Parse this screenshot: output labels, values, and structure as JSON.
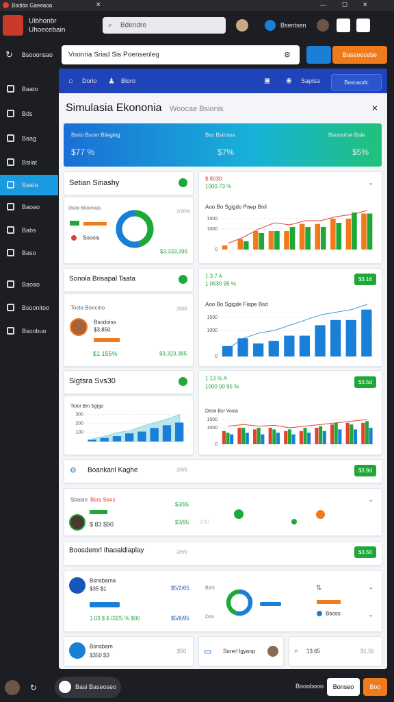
{
  "app": {
    "window_title": "Bsdiás Gaeeaoa",
    "brand": [
      "Uibhonbr",
      "Uhoecebain"
    ],
    "search": "Bdendre",
    "user": "Bsentsen"
  },
  "sidebar": {
    "top": "Bsooonsao",
    "items": [
      "Baato",
      "Bds",
      "Baag",
      "Bsiiat",
      "Baata",
      "Baoao",
      "Babs",
      "Baso",
      "Baoao",
      "Bsoonitoo",
      "Bsoobuo"
    ]
  },
  "toolbar": {
    "search": "Vnonria Sriad  Sis   Poensenleg",
    "button": "Baseoecebe"
  },
  "nav": {
    "items": [
      "Dorio",
      "Bioro"
    ],
    "right": "Sapisa",
    "button": "Bosnaodc"
  },
  "modal": {
    "title": "Simulasia Ekononia",
    "subtitle": "Woocae Bsionis"
  },
  "banner": [
    {
      "label": "Bsrio Bsom Bileglag",
      "value": "$77 %"
    },
    {
      "label": "Bsc Bsinsos",
      "value": "$7%"
    },
    {
      "label": "Bsonairtel Baie",
      "value": "$5%"
    }
  ],
  "row1": {
    "title": "Setian Sinashy",
    "sub": "Dsoo Bioonoas",
    "note": "2/20%",
    "legend": "Sooois",
    "total": "$3,333,396",
    "stat": "$ 8030",
    "change": "1000.73 %"
  },
  "row2": {
    "title": "Sonola Brisapal Taata",
    "head": "Toola  Boocino",
    "note": "2800",
    "name": "Bsodoiss",
    "amount": "$3,850",
    "pct": "$1 155%",
    "total": "$3,323,395",
    "stat": "1.3.7 A",
    "change": "1 0530 95 %",
    "button": "$3.16"
  },
  "row3": {
    "title": "Sigtsra Svs30",
    "stat": "1 13 % A",
    "change": "1000 00 95 %",
    "button": "$3.5d"
  },
  "row4": {
    "title": "Boankanl Kaghe",
    "note": "2/9/0",
    "button": "$3.9d"
  },
  "row5": {
    "head": "Sbaian",
    "tag": "Bsrs Sees",
    "amount": "$ 83 $90",
    "v1": "$3/95",
    "v2": "$3/95",
    "v3": "2/30"
  },
  "row6": {
    "title": "Boosdemrl Ihaoaldlaplay",
    "note": "2/5/0",
    "button": "$3.50"
  },
  "row7": {
    "name": "Bsnsbarna",
    "amount": "$35 $1",
    "v1": "$5/2/65",
    "pct": "1.03 $ $ 0325 % $00",
    "v2": "$5/8/95",
    "l1": "Bsrk",
    "l2": "Doo",
    "r1": "Bsoss"
  },
  "row8": {
    "name": "Bsnsbarn",
    "amount": "$350 $3",
    "v": "$50",
    "mid": "Sarerl lgyanp",
    "s": "13.65",
    "r": "$1,50"
  },
  "footer": {
    "pill": "Basi Baseoseo",
    "label": "Booobooo",
    "b1": "Bonseo",
    "b2": "Boo"
  },
  "chart_data": [
    {
      "type": "pie",
      "values": [
        45,
        55
      ],
      "colors": [
        "#1fa83a",
        "#1a7fd6"
      ]
    },
    {
      "type": "bar",
      "title": "Aoo Bo Sgigdo Paep Bnil",
      "ylim": [
        0,
        2200
      ],
      "yticks": [
        0,
        1000,
        1500
      ],
      "series": [
        {
          "color": "#f07b1c",
          "values": [
            200,
            500,
            900,
            900,
            900,
            1250,
            1250,
            1500,
            1500,
            1750
          ]
        },
        {
          "color": "#1fa83a",
          "values": [
            0,
            400,
            800,
            900,
            1100,
            1100,
            1100,
            1300,
            1800,
            1750
          ]
        },
        {
          "color": "#e2412c",
          "kind": "line",
          "values": [
            300,
            600,
            1000,
            1300,
            1200,
            1400,
            1400,
            1600,
            1700,
            1900
          ]
        }
      ]
    },
    {
      "type": "bar",
      "title": "Aoo Bo Sgigde Fiape Bsd",
      "ylim": [
        0,
        2000
      ],
      "yticks": [
        0,
        1000,
        1500
      ],
      "series": [
        {
          "color": "#1a7fd6",
          "values": [
            400,
            700,
            500,
            600,
            800,
            800,
            1200,
            1400,
            1400,
            1800
          ]
        },
        {
          "color": "#3a9ad9",
          "kind": "line",
          "values": [
            300,
            700,
            900,
            1000,
            1200,
            1400,
            1600,
            1700,
            1800,
            2000
          ]
        }
      ]
    },
    {
      "type": "bar",
      "title": "Tioor Bm Sgigo",
      "ylim": [
        0,
        350
      ],
      "yticks": [
        100,
        200,
        300
      ],
      "series": [
        {
          "color": "#8fd6e0",
          "kind": "area",
          "values": [
            30,
            60,
            100,
            120,
            170,
            210,
            250,
            300
          ]
        },
        {
          "color": "#1a7fd6",
          "values": [
            20,
            40,
            60,
            90,
            110,
            150,
            180,
            210
          ]
        }
      ]
    },
    {
      "type": "bar",
      "title": "Deso Bsr Vosia",
      "ylim": [
        0,
        2000
      ],
      "yticks": [
        0,
        1000,
        1500
      ],
      "series": [
        {
          "color": "#e2412c",
          "values": [
            800,
            1000,
            900,
            1000,
            800,
            800,
            1000,
            1200,
            1300,
            1300
          ]
        },
        {
          "color": "#1fa83a",
          "values": [
            700,
            1000,
            1000,
            900,
            900,
            1000,
            1100,
            1300,
            1200,
            1400
          ]
        },
        {
          "color": "#1a7fd6",
          "values": [
            600,
            700,
            600,
            700,
            600,
            700,
            800,
            900,
            900,
            1000
          ]
        },
        {
          "color": "#e2412c",
          "kind": "line",
          "values": [
            1100,
            1200,
            1100,
            1150,
            1000,
            1100,
            1200,
            1300,
            1400,
            1500
          ]
        }
      ]
    },
    {
      "type": "pie",
      "values": [
        55,
        45
      ],
      "colors": [
        "#1a7fd6",
        "#1fa83a"
      ]
    }
  ]
}
